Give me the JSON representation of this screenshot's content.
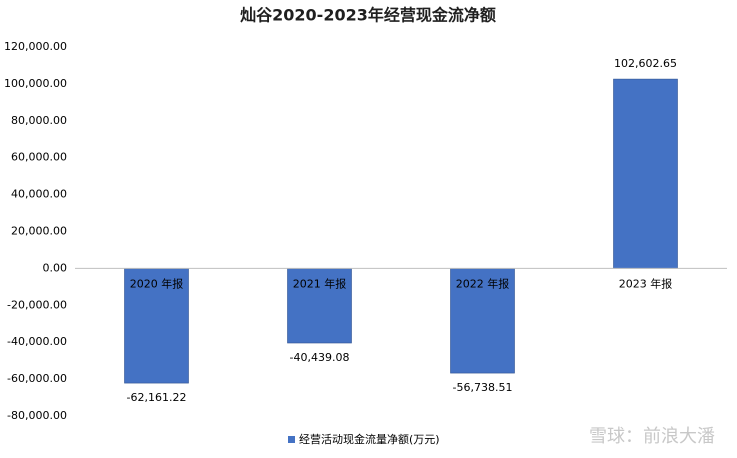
{
  "chart_data": {
    "type": "bar",
    "title": "灿谷2020-2023年经营现金流净额",
    "categories": [
      "2020 年报",
      "2021 年报",
      "2022 年报",
      "2023 年报"
    ],
    "series": [
      {
        "name": "经营活动现金流量净额(万元)",
        "color": "#4472c4",
        "values": [
          -62161.22,
          -40439.08,
          -56738.51,
          102602.65
        ],
        "value_labels": [
          "-62,161.22",
          "-40,439.08",
          "-56,738.51",
          "102,602.65"
        ]
      }
    ],
    "ylim": [
      -80000,
      120000
    ],
    "yticks": [
      {
        "value": -80000,
        "label": "-80,000.00"
      },
      {
        "value": -60000,
        "label": "-60,000.00"
      },
      {
        "value": -40000,
        "label": "-40,000.00"
      },
      {
        "value": -20000,
        "label": "-20,000.00"
      },
      {
        "value": 0,
        "label": "0.00"
      },
      {
        "value": 20000,
        "label": "20,000.00"
      },
      {
        "value": 40000,
        "label": "40,000.00"
      },
      {
        "value": 60000,
        "label": "60,000.00"
      },
      {
        "value": 80000,
        "label": "80,000.00"
      },
      {
        "value": 100000,
        "label": "100,000.00"
      },
      {
        "value": 120000,
        "label": "120,000.00"
      }
    ],
    "grid": false,
    "legend": "bottom",
    "watermark": "雪球：前浪大潘"
  }
}
